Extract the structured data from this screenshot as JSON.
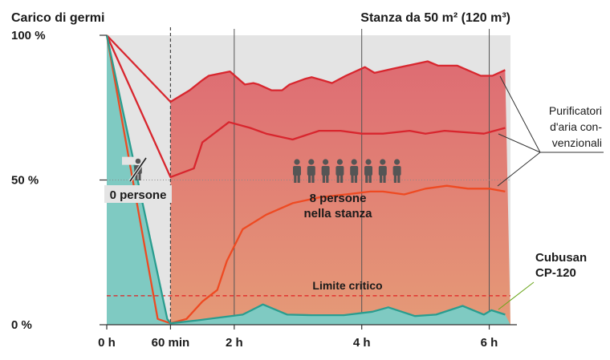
{
  "chart_data": {
    "type": "line",
    "title": "Carico di germi",
    "subtitle": "Stanza da 50 m² (120 m³)",
    "x_unit": "minutes",
    "xlim": [
      0,
      380
    ],
    "ylim": [
      0,
      100
    ],
    "y_ticks": [
      {
        "value": 100,
        "label": "100 %"
      },
      {
        "value": 50,
        "label": "50 %"
      },
      {
        "value": 0,
        "label": "0 %"
      }
    ],
    "x_ticks": [
      {
        "value": 0,
        "label": "0 h"
      },
      {
        "value": 60,
        "label": "60 min"
      },
      {
        "value": 120,
        "label": "2 h"
      },
      {
        "value": 240,
        "label": "4 h"
      },
      {
        "value": 360,
        "label": "6 h"
      }
    ],
    "vertical_gridlines": [
      120,
      240,
      360
    ],
    "dashed_divider_x": 60,
    "critical_limit": {
      "value": 10,
      "label": "Limite critico",
      "color": "#e02020"
    },
    "series": [
      {
        "key": "conventional-top",
        "color": "#d8262e",
        "x": [
          0,
          60,
          78,
          90,
          96,
          116,
          130,
          138,
          143,
          155,
          165,
          172,
          187,
          193,
          203,
          212,
          225,
          243,
          252,
          270,
          302,
          312,
          330,
          352,
          363,
          375
        ],
        "values": [
          100,
          77,
          81,
          84.5,
          86,
          87.5,
          83,
          83.5,
          83,
          81,
          81,
          83,
          85,
          85.5,
          84.5,
          83.5,
          86,
          89,
          87,
          88.5,
          91,
          89.5,
          89.5,
          86,
          86,
          88
        ]
      },
      {
        "key": "conventional-middle",
        "color": "#d8262e",
        "x": [
          0,
          60,
          82,
          90,
          115,
          135,
          150,
          175,
          200,
          220,
          240,
          260,
          285,
          300,
          318,
          355,
          375
        ],
        "values": [
          100,
          51,
          54,
          63,
          70,
          68,
          66,
          64,
          67,
          67,
          66,
          66,
          67,
          66,
          67,
          66,
          68
        ]
      },
      {
        "key": "conventional-bottom",
        "color": "#ee4a22",
        "x": [
          0,
          48,
          60,
          75,
          80,
          90,
          104,
          113,
          128,
          150,
          175,
          200,
          225,
          248,
          260,
          280,
          300,
          320,
          340,
          360,
          375
        ],
        "values": [
          100,
          2,
          0.5,
          2,
          4,
          8,
          12,
          22,
          33,
          38,
          42,
          44,
          45,
          46,
          46,
          45,
          47,
          48,
          47,
          47,
          46
        ]
      },
      {
        "key": "cubusan",
        "name": "Cubusan CP-120",
        "color": "#2a9d8f",
        "fill": "#7fcac2",
        "x": [
          0,
          57,
          60,
          85,
          128,
          147,
          170,
          193,
          223,
          250,
          265,
          290,
          310,
          335,
          355,
          362,
          375
        ],
        "values": [
          100,
          2,
          0.5,
          1.5,
          3.5,
          7,
          3.5,
          3.3,
          3.3,
          4.5,
          6,
          3,
          3.5,
          6.5,
          3.5,
          5,
          3.5
        ]
      }
    ]
  },
  "annotations": {
    "zero_people": "0 persone",
    "eight_people_line1": "8 persone",
    "eight_people_line2": "nella stanza",
    "purifiers_line1": "Purificatori",
    "purifiers_line2": "d'aria con-",
    "purifiers_line3": "venzionali",
    "cubusan_line1": "Cubusan",
    "cubusan_line2": "CP-120",
    "cubusan_color": "#6aa51a",
    "person_icon_count": 8
  },
  "colors": {
    "plot_background": "#e4e4e4",
    "gradient_top": "#de6c73",
    "gradient_bottom": "#e59a77",
    "person_icon": "#555555",
    "text": "#1a1a1a"
  }
}
